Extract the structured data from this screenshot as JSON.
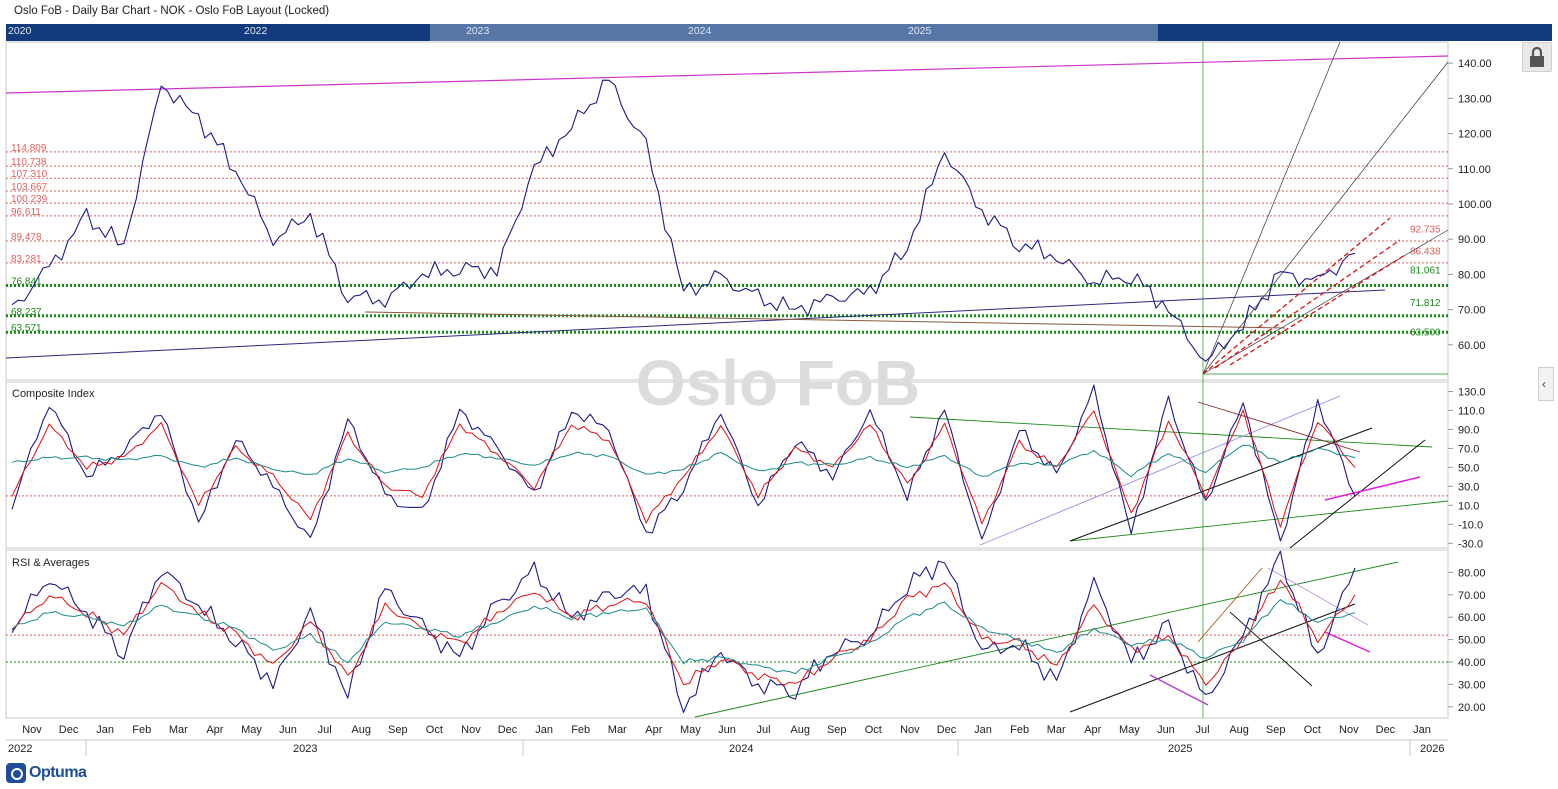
{
  "window": {
    "title": "Oslo FoB - Daily Bar Chart - NOK - Oslo FoB Layout (Locked)"
  },
  "navigator": {
    "years": [
      "2020",
      "2022",
      "2023",
      "2024",
      "2025"
    ]
  },
  "watermark": "Oslo FoB",
  "brand": "Optuma",
  "colors": {
    "price_line": "#1a1a8c",
    "ma_red": "#e01010",
    "ma_teal": "#1a8a8a",
    "resistance": "#e06060",
    "support": "#1a8a1a",
    "magenta": "#cc33cc",
    "background": "#ffffff"
  },
  "panels": {
    "composite_label": "Composite Index",
    "rsi_label": "RSI & Averages"
  },
  "chart_data": [
    {
      "type": "line",
      "title": "Oslo FoB",
      "ylim": [
        50,
        146
      ],
      "y_ticks": [
        "140.00",
        "130.00",
        "120.00",
        "110.00",
        "100.00",
        "90.00",
        "80.00",
        "70.00",
        "60.00"
      ],
      "grid": false,
      "x": [
        "2022-11",
        "2022-12",
        "2023-01",
        "2023-02",
        "2023-03",
        "2023-04",
        "2023-05",
        "2023-06",
        "2023-07",
        "2023-08",
        "2023-09",
        "2023-10",
        "2023-11",
        "2023-12",
        "2024-01",
        "2024-02",
        "2024-03",
        "2024-04",
        "2024-05",
        "2024-06",
        "2024-07",
        "2024-08",
        "2024-09",
        "2024-10",
        "2024-11",
        "2024-12",
        "2025-01",
        "2025-02",
        "2025-03",
        "2025-04",
        "2025-05",
        "2025-06",
        "2025-07",
        "2025-08",
        "2025-09",
        "2025-10",
        "2025-11"
      ],
      "series": [
        {
          "values": [
            70,
            82,
            96,
            88,
            134,
            124,
            110,
            90,
            97,
            74,
            73,
            80,
            82,
            81,
            110,
            122,
            135,
            116,
            75,
            79,
            73,
            70,
            73,
            75,
            88,
            115,
            98,
            89,
            85,
            78,
            80,
            70,
            55,
            66,
            80,
            78,
            86
          ]
        }
      ],
      "resistance_levels_red": [
        114.809,
        110.738,
        107.31,
        103.667,
        100.239,
        96.611,
        89.478,
        83.281
      ],
      "resistance_labels_red": [
        "114.809",
        "110.738",
        "107.310",
        "103.667",
        "100.239",
        "96.611",
        "89.478",
        "83.281"
      ],
      "support_levels_green": [
        76.841,
        68.237,
        63.571
      ],
      "support_labels_green": [
        "76.841",
        "68.237",
        "63.571"
      ],
      "right_labels": [
        {
          "text": "92.735",
          "value": 92.735,
          "color": "red"
        },
        {
          "text": "86.438",
          "value": 86.438,
          "color": "red"
        },
        {
          "text": "81.061",
          "value": 81.061,
          "color": "green"
        },
        {
          "text": "71.812",
          "value": 71.812,
          "color": "green"
        },
        {
          "text": "63.500",
          "value": 63.5,
          "color": "green"
        }
      ]
    },
    {
      "type": "line",
      "title": "Composite Index",
      "ylim": [
        -35,
        140
      ],
      "y_ticks": [
        "130.0",
        "110.0",
        "90.0",
        "70.0",
        "50.0",
        "30.0",
        "10.0",
        "-10.0",
        "-30.0"
      ],
      "reference_line": 20,
      "x": [
        "2022-11",
        "2022-12",
        "2023-01",
        "2023-02",
        "2023-03",
        "2023-04",
        "2023-05",
        "2023-06",
        "2023-07",
        "2023-08",
        "2023-09",
        "2023-10",
        "2023-11",
        "2023-12",
        "2024-01",
        "2024-02",
        "2024-03",
        "2024-04",
        "2024-05",
        "2024-06",
        "2024-07",
        "2024-08",
        "2024-09",
        "2024-10",
        "2024-11",
        "2024-12",
        "2025-01",
        "2025-02",
        "2025-03",
        "2025-04",
        "2025-05",
        "2025-06",
        "2025-07",
        "2025-08",
        "2025-09",
        "2025-10",
        "2025-11"
      ],
      "series": [
        {
          "values": [
            10,
            120,
            40,
            70,
            110,
            -10,
            80,
            30,
            -30,
            100,
            20,
            0,
            110,
            70,
            20,
            110,
            90,
            -20,
            30,
            110,
            10,
            80,
            40,
            110,
            20,
            110,
            -30,
            90,
            40,
            130,
            -20,
            120,
            10,
            120,
            -30,
            120,
            20
          ]
        },
        {
          "values": [
            20,
            95,
            50,
            60,
            95,
            10,
            70,
            40,
            -5,
            85,
            30,
            20,
            95,
            65,
            30,
            95,
            80,
            -5,
            40,
            95,
            20,
            70,
            50,
            95,
            30,
            95,
            -10,
            75,
            50,
            110,
            0,
            100,
            20,
            110,
            -10,
            100,
            50
          ]
        },
        {
          "values": [
            55,
            60,
            60,
            58,
            62,
            50,
            60,
            48,
            42,
            60,
            45,
            50,
            65,
            60,
            52,
            65,
            62,
            42,
            48,
            65,
            45,
            55,
            52,
            60,
            50,
            62,
            40,
            55,
            52,
            68,
            42,
            65,
            45,
            75,
            55,
            70,
            60
          ]
        }
      ]
    },
    {
      "type": "line",
      "title": "RSI & Averages",
      "ylim": [
        15,
        90
      ],
      "y_ticks": [
        "80.00",
        "70.00",
        "60.00",
        "50.00",
        "40.00",
        "30.00",
        "20.00"
      ],
      "reference_lines": [
        52,
        40
      ],
      "x": [
        "2022-11",
        "2022-12",
        "2023-01",
        "2023-02",
        "2023-03",
        "2023-04",
        "2023-05",
        "2023-06",
        "2023-07",
        "2023-08",
        "2023-09",
        "2023-10",
        "2023-11",
        "2023-12",
        "2024-01",
        "2024-02",
        "2024-03",
        "2024-04",
        "2024-05",
        "2024-06",
        "2024-07",
        "2024-08",
        "2024-09",
        "2024-10",
        "2024-11",
        "2024-12",
        "2025-01",
        "2025-02",
        "2025-03",
        "2025-04",
        "2025-05",
        "2025-06",
        "2025-07",
        "2025-08",
        "2025-09",
        "2025-10",
        "2025-11"
      ],
      "series": [
        {
          "values": [
            55,
            78,
            62,
            45,
            82,
            65,
            50,
            30,
            62,
            25,
            72,
            55,
            42,
            65,
            80,
            60,
            70,
            72,
            20,
            45,
            30,
            28,
            45,
            52,
            75,
            85,
            45,
            48,
            30,
            75,
            40,
            55,
            22,
            52,
            86,
            42,
            82
          ]
        },
        {
          "values": [
            55,
            70,
            62,
            52,
            75,
            62,
            52,
            38,
            58,
            32,
            65,
            55,
            48,
            62,
            72,
            60,
            66,
            68,
            30,
            42,
            34,
            30,
            42,
            50,
            68,
            75,
            50,
            48,
            38,
            65,
            45,
            52,
            30,
            50,
            78,
            50,
            70
          ]
        },
        {
          "values": [
            55,
            62,
            60,
            56,
            65,
            60,
            55,
            45,
            52,
            40,
            58,
            55,
            52,
            58,
            65,
            60,
            62,
            64,
            40,
            42,
            38,
            35,
            42,
            48,
            60,
            66,
            55,
            50,
            44,
            55,
            48,
            50,
            42,
            50,
            68,
            58,
            62
          ]
        }
      ]
    }
  ],
  "x_axis": {
    "months": [
      "Nov",
      "Dec",
      "Jan",
      "Feb",
      "Mar",
      "Apr",
      "May",
      "Jun",
      "Jul",
      "Aug",
      "Sep",
      "Oct",
      "Nov",
      "Dec",
      "Jan",
      "Feb",
      "Mar",
      "Apr",
      "May",
      "Jun",
      "Jul",
      "Aug",
      "Sep",
      "Oct",
      "Nov",
      "Dec",
      "Jan",
      "Feb",
      "Mar",
      "Apr",
      "May",
      "Jun",
      "Jul",
      "Aug",
      "Sep",
      "Oct",
      "Nov",
      "Dec",
      "Jan"
    ],
    "years": [
      "2022",
      "2023",
      "2024",
      "2025",
      "2026"
    ]
  }
}
